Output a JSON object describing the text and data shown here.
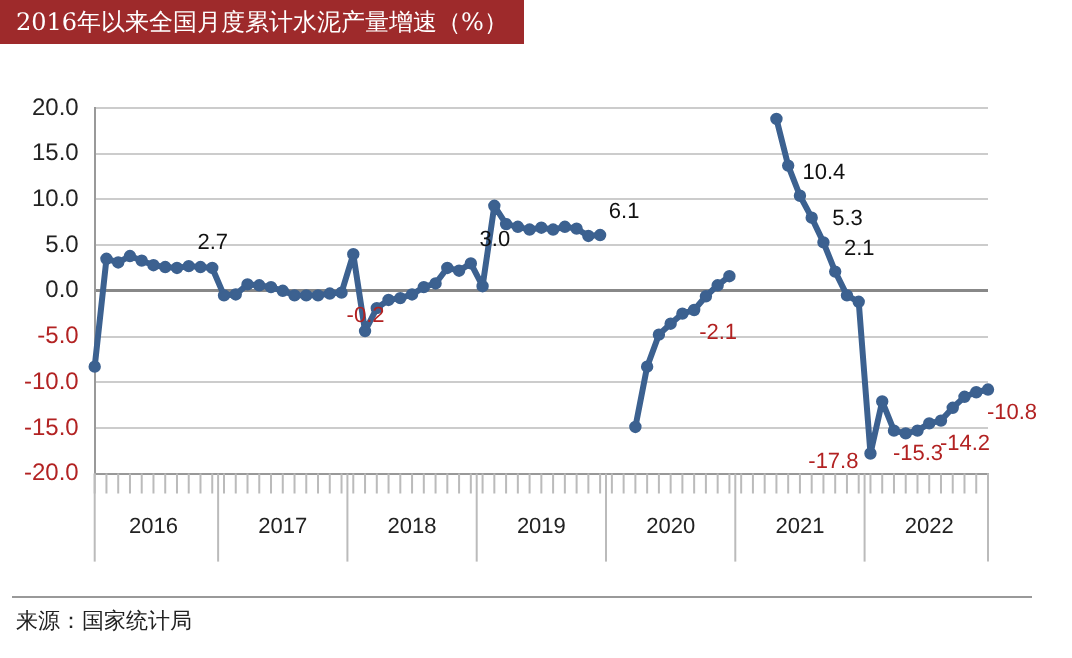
{
  "chart_data": {
    "type": "line",
    "title": "2016年以来全国月度累计水泥产量增速（%）",
    "categories": [
      null,
      null,
      null,
      null,
      null,
      "2016",
      null,
      null,
      null,
      null,
      null,
      null,
      null,
      null,
      null,
      null,
      "2017",
      null,
      null,
      null,
      null,
      null,
      null,
      null,
      null,
      null,
      null,
      "2018",
      null,
      null,
      null,
      null,
      null,
      null,
      null,
      null,
      null,
      null,
      "2019",
      null,
      null,
      null,
      null,
      null,
      null,
      null,
      null,
      null,
      null,
      "2020",
      null,
      null,
      null,
      null,
      null,
      null,
      null,
      null,
      null,
      null,
      "2021",
      null,
      null,
      null,
      null,
      null,
      null,
      null,
      null,
      null,
      null,
      "2022",
      null,
      null,
      null,
      null,
      null
    ],
    "series": [
      {
        "color": "#3c6190",
        "values": [
          -8.3,
          3.5,
          3.1,
          3.8,
          3.3,
          2.8,
          2.6,
          2.5,
          2.7,
          2.6,
          2.5,
          -0.5,
          -0.4,
          0.7,
          0.6,
          0.4,
          0.0,
          -0.5,
          -0.5,
          -0.5,
          -0.3,
          -0.2,
          4.0,
          -4.4,
          -1.9,
          -1.0,
          -0.8,
          -0.4,
          0.4,
          0.8,
          2.5,
          2.2,
          3.0,
          0.5,
          9.3,
          7.3,
          7.0,
          6.7,
          6.9,
          6.7,
          7.0,
          6.8,
          6.0,
          6.1,
          null,
          null,
          -14.9,
          -8.3,
          -4.8,
          -3.6,
          -2.5,
          -2.1,
          -0.6,
          0.6,
          1.6,
          null,
          null,
          null,
          18.8,
          13.7,
          10.4,
          8.0,
          5.3,
          2.1,
          -0.5,
          -1.2,
          -17.8,
          -12.1,
          -15.3,
          -15.6,
          -15.3,
          -14.5,
          -14.2,
          -12.8,
          -11.6,
          -11.1,
          -10.8
        ],
        "value_labels": [
          null,
          null,
          null,
          null,
          null,
          null,
          null,
          null,
          "2.7",
          null,
          null,
          null,
          null,
          null,
          null,
          null,
          null,
          null,
          null,
          null,
          null,
          "-0.2",
          null,
          null,
          null,
          null,
          null,
          null,
          null,
          null,
          null,
          null,
          "3.0",
          null,
          null,
          null,
          null,
          null,
          null,
          null,
          null,
          null,
          null,
          "6.1",
          null,
          null,
          null,
          null,
          null,
          null,
          null,
          "-2.1",
          null,
          null,
          null,
          null,
          null,
          null,
          null,
          null,
          "10.4",
          null,
          "5.3",
          "2.1",
          null,
          null,
          "-17.8",
          null,
          "-15.3",
          null,
          null,
          null,
          "-14.2",
          null,
          null,
          null,
          "-10.8"
        ]
      }
    ],
    "ylim": [
      -20,
      20
    ],
    "yticks": [
      {
        "value": -20,
        "label": "-20.0"
      },
      {
        "value": -15,
        "label": "-15.0"
      },
      {
        "value": -10,
        "label": "-10.0"
      },
      {
        "value": -5,
        "label": "-5.0"
      },
      {
        "value": 0,
        "label": "0.0"
      },
      {
        "value": 5,
        "label": "5.0"
      },
      {
        "value": 10,
        "label": "10.0"
      },
      {
        "value": 15,
        "label": "15.0"
      },
      {
        "value": 20,
        "label": "20.0"
      }
    ],
    "grid": "y",
    "legend": false,
    "marker": "circle",
    "line_style": "solid",
    "annotations": [
      "来源：国家统计局"
    ]
  }
}
